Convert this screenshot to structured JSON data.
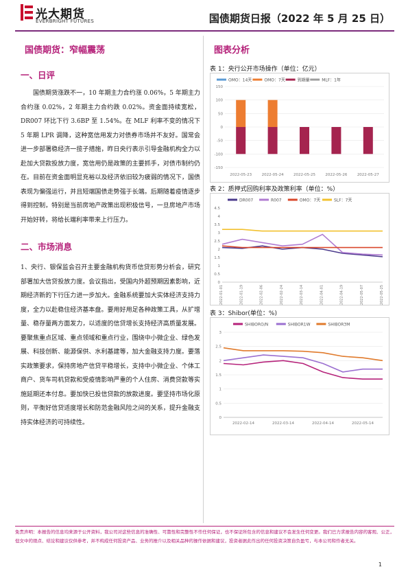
{
  "header": {
    "logo_cn": "光大期货",
    "logo_en": "EVERBRIGHT FUTURES",
    "report_title": "国债期货日报（2022 年 5 月 25 日）"
  },
  "left": {
    "main_heading": "国债期货：窄幅震荡",
    "section1_heading": "一、日评",
    "section1_text": "国债期货涨跌不一，10 年期主力合约涨 0.06%，5 年期主力合约涨 0.02%，2 年期主力合约跌 0.02%。资金面持续宽松，DR007 环比下行 3.6BP 至 1.54%。在 MLF 利率不变的情况下 5 年期 LPR 调降，这种宽信用发力对债券市场并不友好。国常会进一步部署稳经济一揽子措施，昨日央行表示引导金融机构全力以赴加大贷款投放力度，宽信用仍是政策的主要抓手，对债市制约仍在。目前在资金面明显充裕以及经济依旧较为疲弱的情况下，国债表现为偏强运行，并且短端国债走势强于长端。后期随着疫情逐步得到控制，特别是当前房地产政策出现积极信号，一旦房地产市场开始好转，将给长端利率带来上行压力。",
    "section2_heading": "二、市场消息",
    "section2_text": "1、央行、银保监会召开主要金融机构货币信贷形势分析会，研究部署加大信贷投放力度。会议指出，受国内外超预期因素影响，近期经济新的下行压力进一步加大。金融系统要加大实体经济支持力度，全力以赴稳住经济基本盘。要用好用足各种政策工具，从扩增量、稳存量两方面发力，以适度的信贷增长支持经济高质量发展。要聚焦重点区域、重点领域和重点行业，围绕中小微企业、绿色发展、科技创新、能源保供、水利基建等，加大金融支持力度。要落实政策要求，保持房地产信贷平稳增长，支持中小微企业、个体工商户、货车司机贷款和受疫情影响严重的个人住房、消费贷款等实施延期还本付息。要加快已投信贷款的放款进度。要坚持市场化原则，平衡好信贷适度增长和防范金融风险之间的关系，提升金融支持实体经济的可持续性。"
  },
  "right": {
    "heading": "图表分析",
    "chart1_title": "表 1：央行公开市场操作（单位：亿元）",
    "chart2_title": "表 2：质押式回购利率及政策利率（单位：%）",
    "chart3_title": "表 3：Shibor(单位：%)"
  },
  "chart_data": [
    {
      "type": "bar",
      "categories": [
        "2022-05-23",
        "2022-05-24",
        "2022-05-25",
        "2022-05-26",
        "2022-05-27"
      ],
      "series": [
        {
          "name": "OMO：14天",
          "color": "#5b9bd5",
          "values": [
            0,
            0,
            0,
            0,
            0
          ]
        },
        {
          "name": "OMO：7天",
          "color": "#ed7d31",
          "values": [
            100,
            100,
            0,
            0,
            0
          ]
        },
        {
          "name": "到期量",
          "color": "#a5244f",
          "values": [
            -100,
            -100,
            -100,
            -100,
            -100
          ]
        },
        {
          "name": "MLF：1年",
          "color": "#9e9e9e",
          "values": [
            0,
            0,
            0,
            0,
            0
          ]
        }
      ],
      "ylim": [
        -150,
        150
      ],
      "yticks": [
        150,
        100,
        50,
        0,
        -50,
        -100,
        -150
      ]
    },
    {
      "type": "line",
      "x": [
        "2022-01-01",
        "2022-01-19",
        "2022-02-06",
        "2022-02-24",
        "2022-03-14",
        "2022-04-01",
        "2022-04-19",
        "2022-05-07",
        "2022-05-25"
      ],
      "series": [
        {
          "name": "DR007",
          "color": "#4b3a8c",
          "values": [
            2.1,
            2.05,
            2.2,
            2.0,
            2.1,
            2.0,
            1.75,
            1.65,
            1.54
          ]
        },
        {
          "name": "R007",
          "color": "#b07bd1",
          "values": [
            2.3,
            2.6,
            2.4,
            2.2,
            2.3,
            2.9,
            1.8,
            1.7,
            1.65
          ]
        },
        {
          "name": "OMO：7天",
          "color": "#d9472b",
          "values": [
            2.2,
            2.1,
            2.1,
            2.1,
            2.1,
            2.1,
            2.1,
            2.1,
            2.1
          ]
        },
        {
          "name": "SLF：7天",
          "color": "#f2c12e",
          "values": [
            3.2,
            3.2,
            3.1,
            3.1,
            3.1,
            3.1,
            3.1,
            3.1,
            3.1
          ]
        }
      ],
      "ylim": [
        0,
        4.5
      ],
      "yticks": [
        0,
        0.5,
        1,
        1.5,
        2,
        2.5,
        3,
        3.5,
        4,
        4.5
      ]
    },
    {
      "type": "line",
      "categories": [
        "2022-02-14",
        "2022-03-14",
        "2022-04-14",
        "2022-05-14"
      ],
      "x": [
        "2022-01-28",
        "2022-02-14",
        "2022-03-01",
        "2022-03-14",
        "2022-03-28",
        "2022-04-14",
        "2022-04-28",
        "2022-05-14",
        "2022-05-25"
      ],
      "series": [
        {
          "name": "SHIBORO/N",
          "color": "#b5227a",
          "values": [
            1.9,
            1.85,
            1.95,
            2.0,
            1.9,
            1.6,
            1.4,
            1.35,
            1.35
          ]
        },
        {
          "name": "SHIBOR1W",
          "color": "#9b6fd0",
          "values": [
            2.0,
            2.1,
            2.2,
            2.15,
            2.1,
            1.9,
            1.6,
            1.7,
            1.7
          ]
        },
        {
          "name": "SHIBOR3M",
          "color": "#e07a2b",
          "values": [
            2.45,
            2.35,
            2.35,
            2.35,
            2.33,
            2.28,
            2.15,
            2.1,
            2.0
          ]
        }
      ],
      "ylim": [
        0,
        3
      ],
      "yticks": [
        0,
        0.5,
        1,
        1.5,
        2,
        2.5,
        3
      ]
    }
  ],
  "footer": {
    "disclaimer": "免责声明：本报告的信息均来源于公开资料，我公司对这些信息的准确性、可靠性和完整性不作任何保证，也不保证所包含的信息和建议不会发生任何变更。我们已力求报告内容的客观、公正，但文中的观点、结论和建议仅供参考，并不构成任何投资产品、业务的推介以及相关品种的操作依据和建议，投资者据此作出的任何投资决策自负盈亏，与本公司和作者无关。",
    "page_number": "1"
  }
}
